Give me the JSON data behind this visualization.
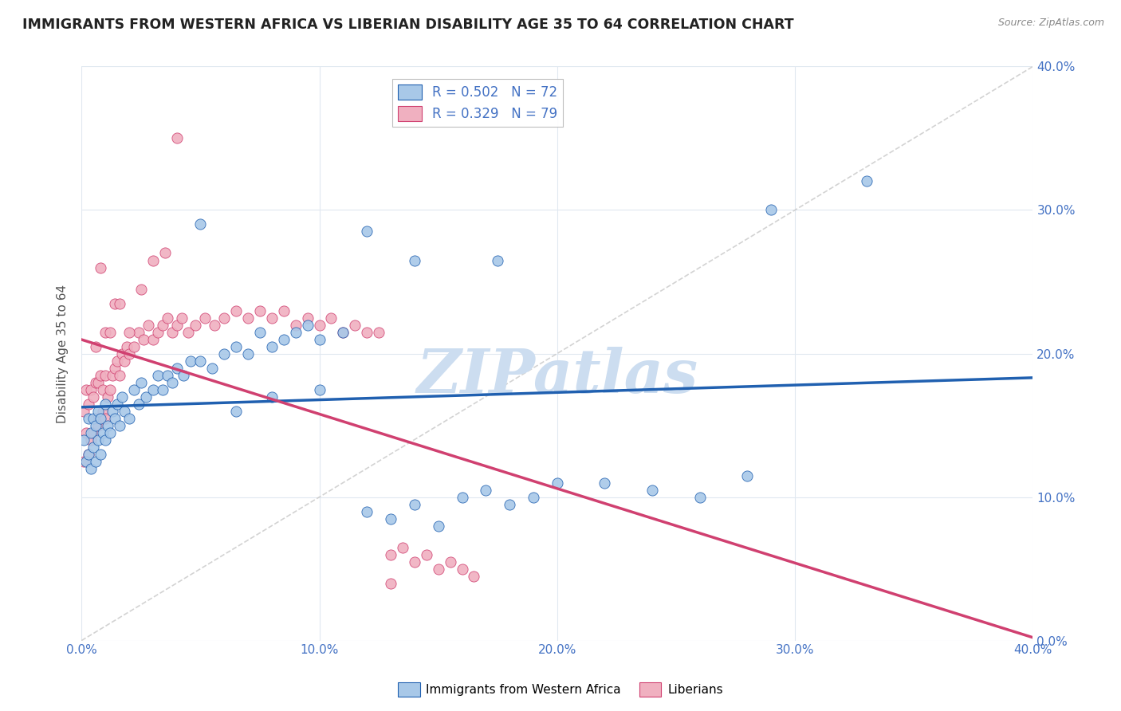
{
  "title": "IMMIGRANTS FROM WESTERN AFRICA VS LIBERIAN DISABILITY AGE 35 TO 64 CORRELATION CHART",
  "source": "Source: ZipAtlas.com",
  "ylabel": "Disability Age 35 to 64",
  "xlim": [
    0.0,
    0.4
  ],
  "ylim": [
    0.0,
    0.4
  ],
  "xticks": [
    0.0,
    0.1,
    0.2,
    0.3,
    0.4
  ],
  "yticks": [
    0.0,
    0.1,
    0.2,
    0.3,
    0.4
  ],
  "blue_color": "#a8c8e8",
  "pink_color": "#f0b0c0",
  "blue_line_color": "#2060b0",
  "pink_line_color": "#d04070",
  "ref_line_color": "#c8c8c8",
  "title_color": "#222222",
  "axis_label_color": "#4472c4",
  "watermark": "ZIPatlas",
  "watermark_color": "#ccddf0",
  "legend_label_blue": "Immigrants from Western Africa",
  "legend_label_pink": "Liberians",
  "legend_blue_r": "0.502",
  "legend_blue_n": "72",
  "legend_pink_r": "0.329",
  "legend_pink_n": "79",
  "blue_scatter_x": [
    0.001,
    0.002,
    0.003,
    0.003,
    0.004,
    0.004,
    0.005,
    0.005,
    0.006,
    0.006,
    0.007,
    0.007,
    0.008,
    0.008,
    0.009,
    0.01,
    0.01,
    0.011,
    0.012,
    0.013,
    0.014,
    0.015,
    0.016,
    0.017,
    0.018,
    0.02,
    0.022,
    0.024,
    0.025,
    0.027,
    0.03,
    0.032,
    0.034,
    0.036,
    0.038,
    0.04,
    0.043,
    0.046,
    0.05,
    0.055,
    0.06,
    0.065,
    0.07,
    0.075,
    0.08,
    0.085,
    0.09,
    0.095,
    0.1,
    0.11,
    0.12,
    0.13,
    0.14,
    0.15,
    0.16,
    0.17,
    0.18,
    0.19,
    0.2,
    0.22,
    0.24,
    0.26,
    0.28,
    0.05,
    0.065,
    0.08,
    0.1,
    0.12,
    0.14,
    0.29,
    0.33,
    0.175
  ],
  "blue_scatter_y": [
    0.14,
    0.125,
    0.13,
    0.155,
    0.12,
    0.145,
    0.135,
    0.155,
    0.125,
    0.15,
    0.14,
    0.16,
    0.13,
    0.155,
    0.145,
    0.14,
    0.165,
    0.15,
    0.145,
    0.16,
    0.155,
    0.165,
    0.15,
    0.17,
    0.16,
    0.155,
    0.175,
    0.165,
    0.18,
    0.17,
    0.175,
    0.185,
    0.175,
    0.185,
    0.18,
    0.19,
    0.185,
    0.195,
    0.195,
    0.19,
    0.2,
    0.205,
    0.2,
    0.215,
    0.205,
    0.21,
    0.215,
    0.22,
    0.21,
    0.215,
    0.09,
    0.085,
    0.095,
    0.08,
    0.1,
    0.105,
    0.095,
    0.1,
    0.11,
    0.11,
    0.105,
    0.1,
    0.115,
    0.29,
    0.16,
    0.17,
    0.175,
    0.285,
    0.265,
    0.3,
    0.32,
    0.265
  ],
  "pink_scatter_x": [
    0.001,
    0.001,
    0.002,
    0.002,
    0.003,
    0.003,
    0.004,
    0.004,
    0.005,
    0.005,
    0.006,
    0.006,
    0.007,
    0.007,
    0.008,
    0.008,
    0.009,
    0.009,
    0.01,
    0.01,
    0.011,
    0.012,
    0.013,
    0.014,
    0.015,
    0.016,
    0.017,
    0.018,
    0.019,
    0.02,
    0.022,
    0.024,
    0.026,
    0.028,
    0.03,
    0.032,
    0.034,
    0.036,
    0.038,
    0.04,
    0.042,
    0.045,
    0.048,
    0.052,
    0.056,
    0.06,
    0.065,
    0.07,
    0.075,
    0.08,
    0.085,
    0.09,
    0.095,
    0.1,
    0.105,
    0.11,
    0.115,
    0.12,
    0.125,
    0.13,
    0.135,
    0.14,
    0.145,
    0.15,
    0.155,
    0.16,
    0.165,
    0.006,
    0.008,
    0.01,
    0.012,
    0.014,
    0.016,
    0.02,
    0.025,
    0.03,
    0.035,
    0.04,
    0.13
  ],
  "pink_scatter_y": [
    0.125,
    0.16,
    0.145,
    0.175,
    0.13,
    0.165,
    0.14,
    0.175,
    0.145,
    0.17,
    0.155,
    0.18,
    0.15,
    0.18,
    0.155,
    0.185,
    0.16,
    0.175,
    0.155,
    0.185,
    0.17,
    0.175,
    0.185,
    0.19,
    0.195,
    0.185,
    0.2,
    0.195,
    0.205,
    0.2,
    0.205,
    0.215,
    0.21,
    0.22,
    0.21,
    0.215,
    0.22,
    0.225,
    0.215,
    0.22,
    0.225,
    0.215,
    0.22,
    0.225,
    0.22,
    0.225,
    0.23,
    0.225,
    0.23,
    0.225,
    0.23,
    0.22,
    0.225,
    0.22,
    0.225,
    0.215,
    0.22,
    0.215,
    0.215,
    0.06,
    0.065,
    0.055,
    0.06,
    0.05,
    0.055,
    0.05,
    0.045,
    0.205,
    0.26,
    0.215,
    0.215,
    0.235,
    0.235,
    0.215,
    0.245,
    0.265,
    0.27,
    0.35,
    0.04
  ]
}
